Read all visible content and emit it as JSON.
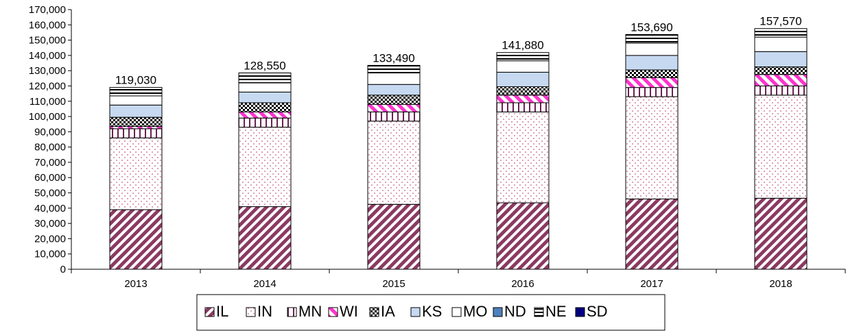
{
  "chart_data": {
    "type": "bar",
    "stacked": true,
    "categories": [
      "2013",
      "2014",
      "2015",
      "2016",
      "2017",
      "2018"
    ],
    "ylim": [
      0,
      170000
    ],
    "ytick_step": 10000,
    "grid": false,
    "legend_position": "bottom",
    "totals": [
      "119,030",
      "128,550",
      "133,490",
      "141,880",
      "153,690",
      "157,570"
    ],
    "series": [
      {
        "name": "IL",
        "color": "#8B3A62",
        "pattern": "diagonal-stripes",
        "values": [
          39000,
          41000,
          42500,
          43500,
          46000,
          46500
        ]
      },
      {
        "name": "IN",
        "color": "#B03060",
        "pattern": "dots",
        "values": [
          47000,
          52000,
          54500,
          59500,
          67000,
          67500
        ]
      },
      {
        "name": "MN",
        "color": "#6B2050",
        "pattern": "vertical-lines",
        "values": [
          6000,
          6000,
          6000,
          6000,
          6000,
          6000
        ]
      },
      {
        "name": "WI",
        "color": "#FF33CC",
        "pattern": "pink-diagonal",
        "values": [
          1500,
          4000,
          5000,
          5000,
          6500,
          7500
        ]
      },
      {
        "name": "IA",
        "color": "#000000",
        "pattern": "checker",
        "values": [
          6000,
          6000,
          6000,
          5500,
          5000,
          5000
        ]
      },
      {
        "name": "KS",
        "color": "#C6D9F1",
        "pattern": "solid",
        "values": [
          8000,
          7000,
          7000,
          9500,
          9500,
          10000
        ]
      },
      {
        "name": "MO",
        "color": "#FFFFFF",
        "pattern": "solid",
        "values": [
          6000,
          6000,
          7500,
          7500,
          8000,
          9500
        ]
      },
      {
        "name": "ND",
        "color": "#4F81BD",
        "pattern": "solid",
        "values": [
          0,
          0,
          0,
          0,
          0,
          0
        ]
      },
      {
        "name": "NE",
        "color": "#000000",
        "pattern": "horizontal-lines",
        "values": [
          5530,
          6550,
          4990,
          5380,
          5690,
          5570
        ]
      },
      {
        "name": "SD",
        "color": "#000080",
        "pattern": "solid",
        "values": [
          0,
          0,
          0,
          0,
          0,
          0
        ]
      }
    ]
  }
}
